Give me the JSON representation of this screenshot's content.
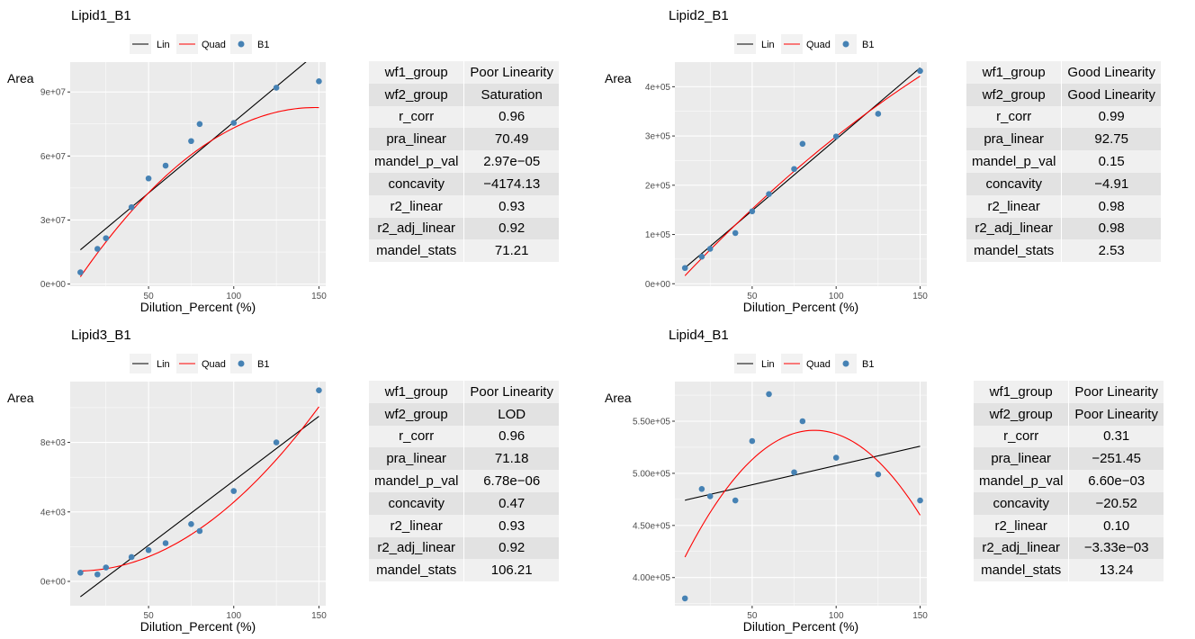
{
  "chart_data": [
    {
      "type": "scatter",
      "title": "Lipid1_B1",
      "xlabel": "Dilution_Percent (%)",
      "ylabel": "Area",
      "legend": [
        "Lin",
        "Quad",
        "B1"
      ],
      "legend_position": "top",
      "grid": true,
      "xlim": [
        4,
        154
      ],
      "ylim": [
        -1000000,
        104000000
      ],
      "xticks": [
        50,
        100,
        150
      ],
      "yticks": [
        0,
        30000000,
        60000000,
        90000000
      ],
      "ytick_labels": [
        "0e+00",
        "3e+07",
        "6e+07",
        "9e+07"
      ],
      "points": {
        "x": [
          10,
          20,
          25,
          40,
          50,
          60,
          75,
          80,
          100,
          125,
          150
        ],
        "y": [
          5500000,
          16500000,
          21500000,
          36000000,
          49500000,
          55500000,
          67000000,
          75000000,
          75500000,
          92000000,
          95000000
        ]
      },
      "lin_fit": {
        "intercept": 9400000,
        "slope": 665000
      },
      "quad_fit": {
        "a": -4174.13,
        "b": 1234000,
        "c": -8500000
      },
      "table": [
        [
          "wf1_group",
          "Poor Linearity"
        ],
        [
          "wf2_group",
          "Saturation"
        ],
        [
          "r_corr",
          "0.96"
        ],
        [
          "pra_linear",
          "70.49"
        ],
        [
          "mandel_p_val",
          "2.97e−05"
        ],
        [
          "concavity",
          "−4174.13"
        ],
        [
          "r2_linear",
          "0.93"
        ],
        [
          "r2_adj_linear",
          "0.92"
        ],
        [
          "mandel_stats",
          "71.21"
        ]
      ]
    },
    {
      "type": "scatter",
      "title": "Lipid2_B1",
      "xlabel": "Dilution_Percent (%)",
      "ylabel": "Area",
      "legend": [
        "Lin",
        "Quad",
        "B1"
      ],
      "legend_position": "top",
      "grid": true,
      "xlim": [
        4,
        154
      ],
      "ylim": [
        -5000,
        450000
      ],
      "xticks": [
        50,
        100,
        150
      ],
      "yticks": [
        0,
        100000,
        200000,
        300000,
        400000
      ],
      "ytick_labels": [
        "0e+00",
        "1e+05",
        "2e+05",
        "3e+05",
        "4e+05"
      ],
      "points": {
        "x": [
          10,
          20,
          25,
          40,
          50,
          60,
          75,
          80,
          100,
          125,
          150
        ],
        "y": [
          32000,
          55000,
          71000,
          103000,
          147000,
          182000,
          233000,
          284000,
          299000,
          345000,
          432000
        ]
      },
      "lin_fit": {
        "intercept": 3400,
        "slope": 2900
      },
      "quad_fit": {
        "a": -4.91,
        "b": 3680,
        "c": -20000
      },
      "table": [
        [
          "wf1_group",
          "Good Linearity"
        ],
        [
          "wf2_group",
          "Good Linearity"
        ],
        [
          "r_corr",
          "0.99"
        ],
        [
          "pra_linear",
          "92.75"
        ],
        [
          "mandel_p_val",
          "0.15"
        ],
        [
          "concavity",
          "−4.91"
        ],
        [
          "r2_linear",
          "0.98"
        ],
        [
          "r2_adj_linear",
          "0.98"
        ],
        [
          "mandel_stats",
          "2.53"
        ]
      ]
    },
    {
      "type": "scatter",
      "title": "Lipid3_B1",
      "xlabel": "Dilution_Percent (%)",
      "ylabel": "Area",
      "legend": [
        "Lin",
        "Quad",
        "B1"
      ],
      "legend_position": "top",
      "grid": true,
      "xlim": [
        4,
        154
      ],
      "ylim": [
        -1400,
        11500
      ],
      "xticks": [
        50,
        100,
        150
      ],
      "yticks": [
        0,
        4000,
        8000
      ],
      "ytick_labels": [
        "0e+00",
        "4e+03",
        "8e+03"
      ],
      "points": {
        "x": [
          10,
          20,
          25,
          40,
          50,
          60,
          75,
          80,
          100,
          125,
          150
        ],
        "y": [
          500,
          400,
          800,
          1400,
          1800,
          2200,
          3300,
          2900,
          5200,
          8000,
          11000
        ]
      },
      "lin_fit": {
        "intercept": -1630,
        "slope": 74.2
      },
      "quad_fit": {
        "a": 0.47,
        "b": -7.7,
        "c": 630
      },
      "table": [
        [
          "wf1_group",
          "Poor Linearity"
        ],
        [
          "wf2_group",
          "LOD"
        ],
        [
          "r_corr",
          "0.96"
        ],
        [
          "pra_linear",
          "71.18"
        ],
        [
          "mandel_p_val",
          "6.78e−06"
        ],
        [
          "concavity",
          "0.47"
        ],
        [
          "r2_linear",
          "0.93"
        ],
        [
          "r2_adj_linear",
          "0.92"
        ],
        [
          "mandel_stats",
          "106.21"
        ]
      ]
    },
    {
      "type": "scatter",
      "title": "Lipid4_B1",
      "xlabel": "Dilution_Percent (%)",
      "ylabel": "Area",
      "legend": [
        "Lin",
        "Quad",
        "B1"
      ],
      "legend_position": "top",
      "grid": true,
      "xlim": [
        4,
        154
      ],
      "ylim": [
        373000,
        588000
      ],
      "xticks": [
        50,
        100,
        150
      ],
      "yticks": [
        400000,
        450000,
        500000,
        550000
      ],
      "ytick_labels": [
        "4.00e+05",
        "4.50e+05",
        "5.00e+05",
        "5.50e+05"
      ],
      "points": {
        "x": [
          10,
          20,
          25,
          40,
          50,
          60,
          75,
          80,
          100,
          125,
          150
        ],
        "y": [
          380000,
          485000,
          478000,
          474000,
          531000,
          576000,
          501000,
          550000,
          515000,
          499000,
          474000
        ]
      },
      "lin_fit": {
        "intercept": 470500,
        "slope": 370
      },
      "quad_fit": {
        "a": -20.52,
        "b": 3570,
        "c": 386000
      },
      "table": [
        [
          "wf1_group",
          "Poor Linearity"
        ],
        [
          "wf2_group",
          "Poor Linearity"
        ],
        [
          "r_corr",
          "0.31"
        ],
        [
          "pra_linear",
          "−251.45"
        ],
        [
          "mandel_p_val",
          "6.60e−03"
        ],
        [
          "concavity",
          "−20.52"
        ],
        [
          "r2_linear",
          "0.10"
        ],
        [
          "r2_adj_linear",
          "−3.33e−03"
        ],
        [
          "mandel_stats",
          "13.24"
        ]
      ]
    }
  ],
  "colors": {
    "panel_bg": "#ebebeb",
    "grid": "#ffffff",
    "lin": "#000000",
    "quad": "#ff0000",
    "points": "#4682b4",
    "table_light": "#f0f0f0",
    "table_dark": "#e2e2e2"
  }
}
